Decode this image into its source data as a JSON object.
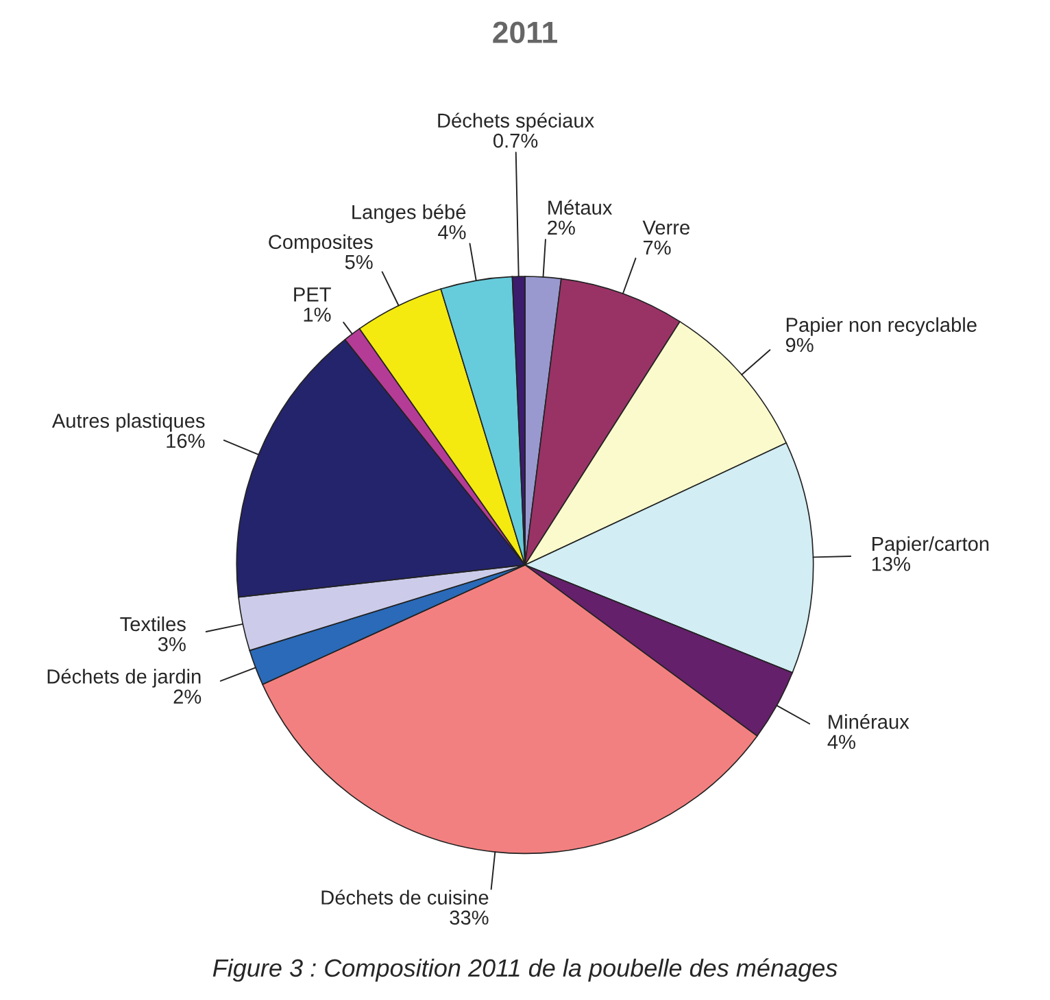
{
  "chart_data": {
    "type": "pie",
    "title": "2011",
    "categories": [
      "Métaux",
      "Verre",
      "Papier non recyclable",
      "Papier/carton",
      "Minéraux",
      "Déchets de cuisine",
      "Déchets de jardin",
      "Textiles",
      "Autres plastiques",
      "PET",
      "Composites",
      "Langes bébé",
      "Déchets spéciaux"
    ],
    "values": [
      2,
      7,
      9,
      13,
      4,
      33,
      2,
      3,
      16,
      1,
      5,
      4,
      0.7
    ],
    "value_labels": [
      "2%",
      "7%",
      "9%",
      "13%",
      "4%",
      "33%",
      "2%",
      "3%",
      "16%",
      "1%",
      "5%",
      "4%",
      "0.7%"
    ],
    "colors": [
      "#9999d0",
      "#993366",
      "#fafacc",
      "#d2edf4",
      "#64206a",
      "#f38080",
      "#2a6ab8",
      "#ccccea",
      "#24246c",
      "#b43c96",
      "#f4ea10",
      "#66ccdc",
      "#3c1c6c"
    ],
    "annotations": [
      "Figure 3 : Composition 2011 de la poubelle des ménages"
    ]
  }
}
